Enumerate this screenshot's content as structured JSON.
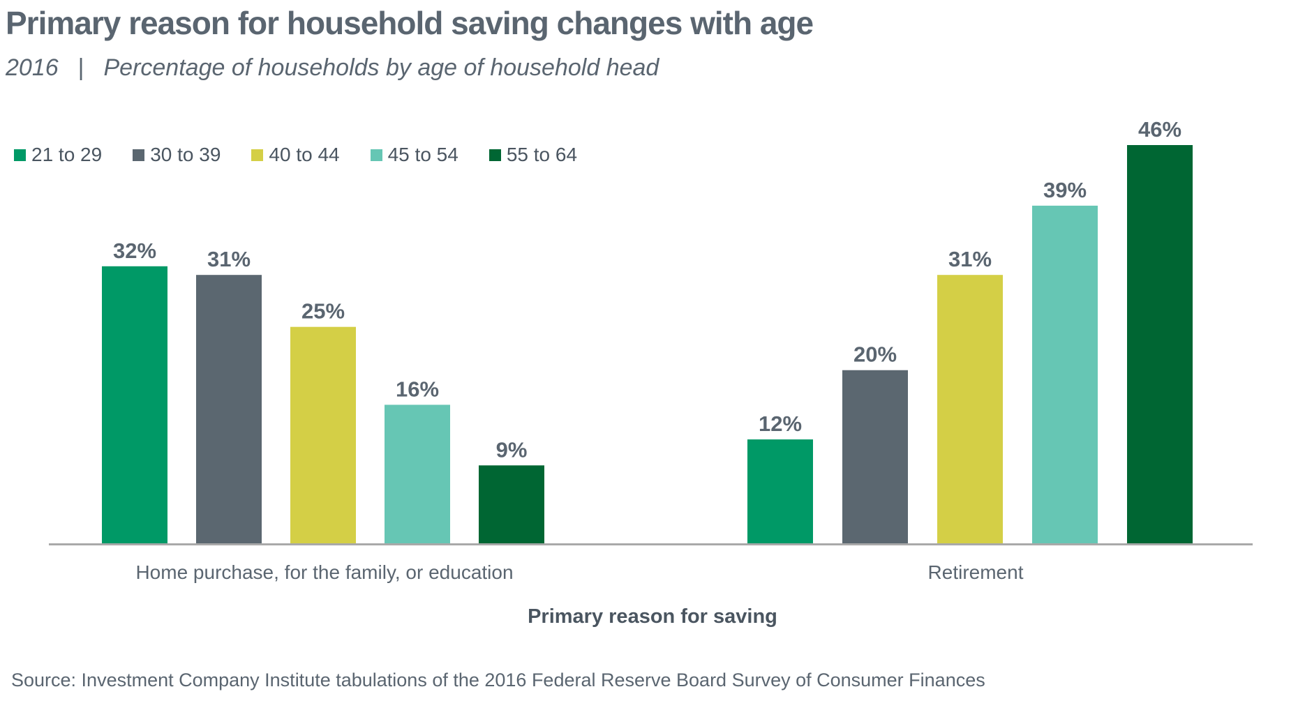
{
  "title": "Primary reason for household saving changes with age",
  "subtitle": {
    "year": "2016",
    "separator": "|",
    "text": "Percentage of households by age of household head"
  },
  "source": "Source: Investment Company Institute tabulations of the 2016 Federal Reserve Board Survey of Consumer Finances",
  "chart_data": {
    "type": "bar",
    "title": "Primary reason for household saving changes with age",
    "xlabel": "Primary reason for saving",
    "ylabel": "",
    "ylim": [
      0,
      46
    ],
    "grid": false,
    "legend_position": "top-left",
    "categories": [
      "Home purchase, for the family, or education",
      "Retirement"
    ],
    "series": [
      {
        "name": "21 to 29",
        "color": "#009966",
        "values": [
          32,
          12
        ],
        "labels": [
          "32%",
          "12%"
        ]
      },
      {
        "name": "30 to 39",
        "color": "#5b6770",
        "values": [
          31,
          20
        ],
        "labels": [
          "31%",
          "20%"
        ]
      },
      {
        "name": "40 to 44",
        "color": "#d4cf46",
        "values": [
          25,
          31
        ],
        "labels": [
          "25%",
          "31%"
        ]
      },
      {
        "name": "45 to 54",
        "color": "#66c6b4",
        "values": [
          16,
          39
        ],
        "labels": [
          "16%",
          "39%"
        ]
      },
      {
        "name": "55 to 64",
        "color": "#006633",
        "values": [
          9,
          46
        ],
        "labels": [
          "9%",
          "46%"
        ]
      }
    ]
  }
}
